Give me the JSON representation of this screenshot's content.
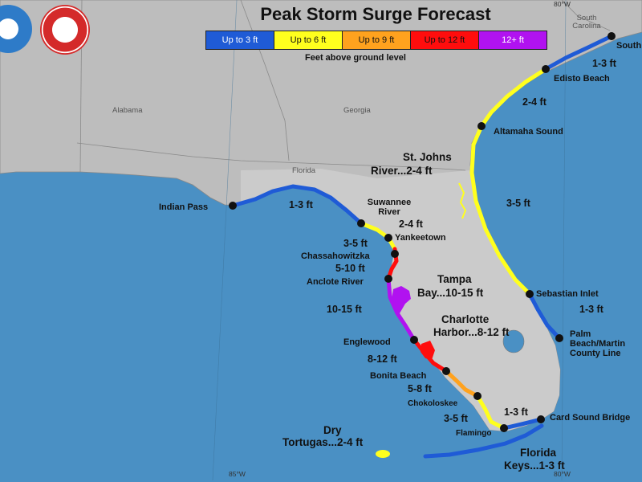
{
  "title": "Peak Storm Surge Forecast",
  "subtitle": "Feet above ground level",
  "legend": [
    {
      "label": "Up to 3 ft",
      "color": "#1f5bd6"
    },
    {
      "label": "Up to 6 ft",
      "color": "#ffff1e"
    },
    {
      "label": "Up to 9 ft",
      "color": "#ffa21e"
    },
    {
      "label": "Up to 12 ft",
      "color": "#ff0d0d"
    },
    {
      "label": "12+ ft",
      "color": "#b112f0"
    }
  ],
  "logos": {
    "noaa": "NOAA",
    "nws": "NATIONAL WEATHER SERVICE"
  },
  "states": {
    "alabama": "Alabama",
    "georgia": "Georgia",
    "florida": "Florida",
    "south_carolina": "South Carolina"
  },
  "coords": {
    "top_right": "80°W",
    "bottom_left": "85°W",
    "bottom_right": "80°W"
  },
  "points": {
    "indian_pass": "Indian Pass",
    "suwannee_river": "Suwannee River",
    "yankeetown": "Yankeetown",
    "chassahowitzka": "Chassahowitzka",
    "anclote_river": "Anclote River",
    "englewood": "Englewood",
    "bonita_beach": "Bonita Beach",
    "chokoloskee": "Chokoloskee",
    "flamingo": "Flamingo",
    "card_sound_bridge": "Card Sound Bridge",
    "palm_beach": "Palm Beach/Martin County Line",
    "sebastian_inlet": "Sebastian Inlet",
    "altamaha_sound": "Altamaha Sound",
    "edisto_beach": "Edisto Beach",
    "south_santee": "South Santee River"
  },
  "segments": {
    "indian_suwannee": "1-3 ft",
    "suwannee_yankeetown": "2-4 ft",
    "yankeetown_chass": "3-5 ft",
    "chass_anclote": "5-10 ft",
    "tampa_bay_1": "Tampa",
    "tampa_bay_2": "Bay...10-15 ft",
    "anclote_englewood": "10-15 ft",
    "charlotte_1": "Charlotte",
    "charlotte_2": "Harbor...8-12 ft",
    "englewood_bonita": "8-12 ft",
    "bonita_choko": "5-8 ft",
    "choko_flamingo": "3-5 ft",
    "flamingo_card": "1-3 ft",
    "keys_1": "Florida",
    "keys_2": "Keys...1-3 ft",
    "tortugas_1": "Dry",
    "tortugas_2": "Tortugas...2-4 ft",
    "stjohns_1": "St. Johns",
    "stjohns_2": "River...2-4 ft",
    "sebastian_palm": "1-3 ft",
    "altamaha_sebastian": "3-5 ft",
    "edisto_altamaha": "2-4 ft",
    "santee_edisto": "1-3 ft"
  },
  "colors": {
    "ocean": "#4a90c4",
    "land": "#c8c8c8",
    "outside_land": "#b4b4b4",
    "blue": "#1f5bd6",
    "yellow": "#ffff1e",
    "orange": "#ffa21e",
    "red": "#ff0d0d",
    "purple": "#b112f0"
  }
}
